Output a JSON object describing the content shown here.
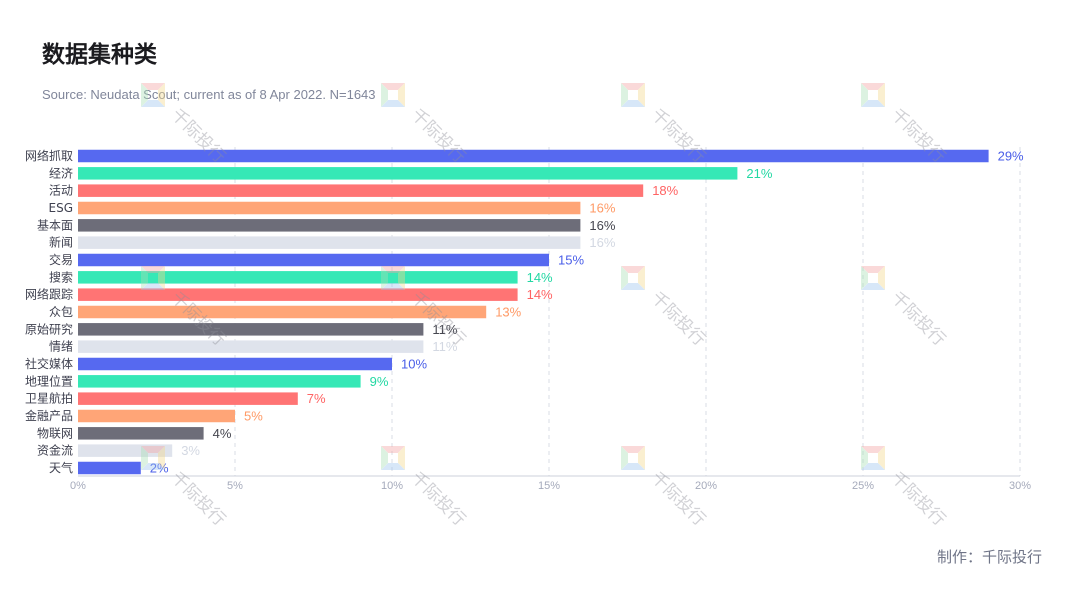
{
  "credit": "制作：千际投行",
  "watermark": {
    "text": "千际投行",
    "logo_colors": [
      "#f4a3a3",
      "#f3d98b",
      "#9ec4ef",
      "#a9dfb5"
    ]
  },
  "chart_data": {
    "type": "bar",
    "orientation": "horizontal",
    "title": "数据集种类",
    "subtitle": "Source: Neudata Scout; current as of 8 Apr 2022. N=1643",
    "categories": [
      "网络抓取",
      "经济",
      "活动",
      "ESG",
      "基本面",
      "新闻",
      "交易",
      "搜索",
      "网络跟踪",
      "众包",
      "原始研究",
      "情绪",
      "社交媒体",
      "地理位置",
      "卫星航拍",
      "金融产品",
      "物联网",
      "资金流",
      "天气"
    ],
    "values": [
      29,
      21,
      18,
      16,
      16,
      16,
      15,
      14,
      14,
      13,
      11,
      11,
      10,
      9,
      7,
      5,
      4,
      3,
      2
    ],
    "data_labels": [
      "29%",
      "21%",
      "18%",
      "16%",
      "16%",
      "16%",
      "15%",
      "14%",
      "14%",
      "13%",
      "11%",
      "11%",
      "10%",
      "9%",
      "7%",
      "5%",
      "4%",
      "3%",
      "2%"
    ],
    "xlim": [
      0,
      30
    ],
    "xticks": [
      0,
      5,
      10,
      15,
      20,
      25,
      30
    ],
    "xtick_labels": [
      "0%",
      "5%",
      "10%",
      "15%",
      "20%",
      "25%",
      "30%"
    ],
    "grid": true,
    "legend": false,
    "palette": [
      {
        "bar": "#5669f0",
        "label": "#4a5ee8"
      },
      {
        "bar": "#36e8b6",
        "label": "#22d8a3"
      },
      {
        "bar": "#ff7474",
        "label": "#ff6363"
      },
      {
        "bar": "#ffa577",
        "label": "#ff9a66"
      },
      {
        "bar": "#6d6d79",
        "label": "#45464f"
      },
      {
        "bar": "#dfe3ec",
        "label": "#d3d8e2"
      }
    ]
  }
}
